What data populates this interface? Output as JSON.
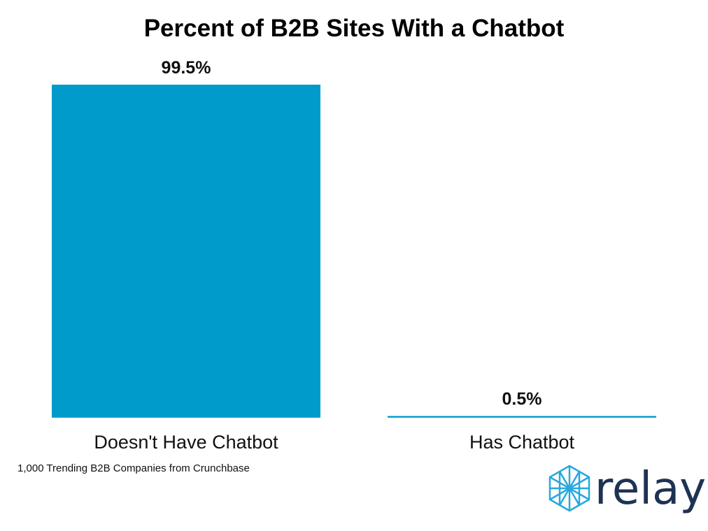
{
  "chart_data": {
    "type": "bar",
    "title": "Percent of B2B Sites With a Chatbot",
    "categories": [
      "Doesn't Have Chatbot",
      "Has Chatbot"
    ],
    "values": [
      99.5,
      0.5
    ],
    "data_labels": [
      "99.5%",
      "0.5%"
    ],
    "unit": "%",
    "ylim": [
      0,
      100
    ],
    "grid": false,
    "bar_color": "#009bcb",
    "note": "1,000 Trending B2B Companies from Crunchbase"
  },
  "logo": {
    "text": "relay",
    "icon": "hexagon-lattice-icon",
    "text_color": "#1e3352",
    "icon_color": "#29a8dc"
  }
}
